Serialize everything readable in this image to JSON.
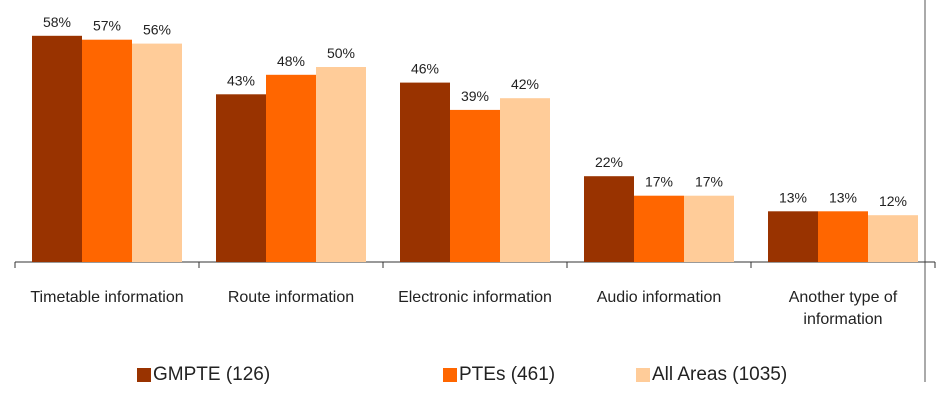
{
  "chart_data": {
    "type": "bar",
    "categories": [
      "Timetable information",
      "Route information",
      "Electronic information",
      "Audio information",
      "Another type of information"
    ],
    "series": [
      {
        "name": "GMPTE (126)",
        "color": "#993300",
        "values": [
          58,
          43,
          46,
          22,
          13
        ],
        "value_labels": [
          "58%",
          "43%",
          "46%",
          "22%",
          "13%"
        ]
      },
      {
        "name": "PTEs (461)",
        "color": "#ff6600",
        "values": [
          57,
          48,
          39,
          17,
          13
        ],
        "value_labels": [
          "57%",
          "48%",
          "39%",
          "17%",
          "13%"
        ]
      },
      {
        "name": "All Areas (1035)",
        "color": "#ffcc99",
        "values": [
          56,
          50,
          42,
          17,
          12
        ],
        "value_labels": [
          "56%",
          "50%",
          "42%",
          "17%",
          "12%"
        ]
      }
    ],
    "legend": "bottom"
  }
}
